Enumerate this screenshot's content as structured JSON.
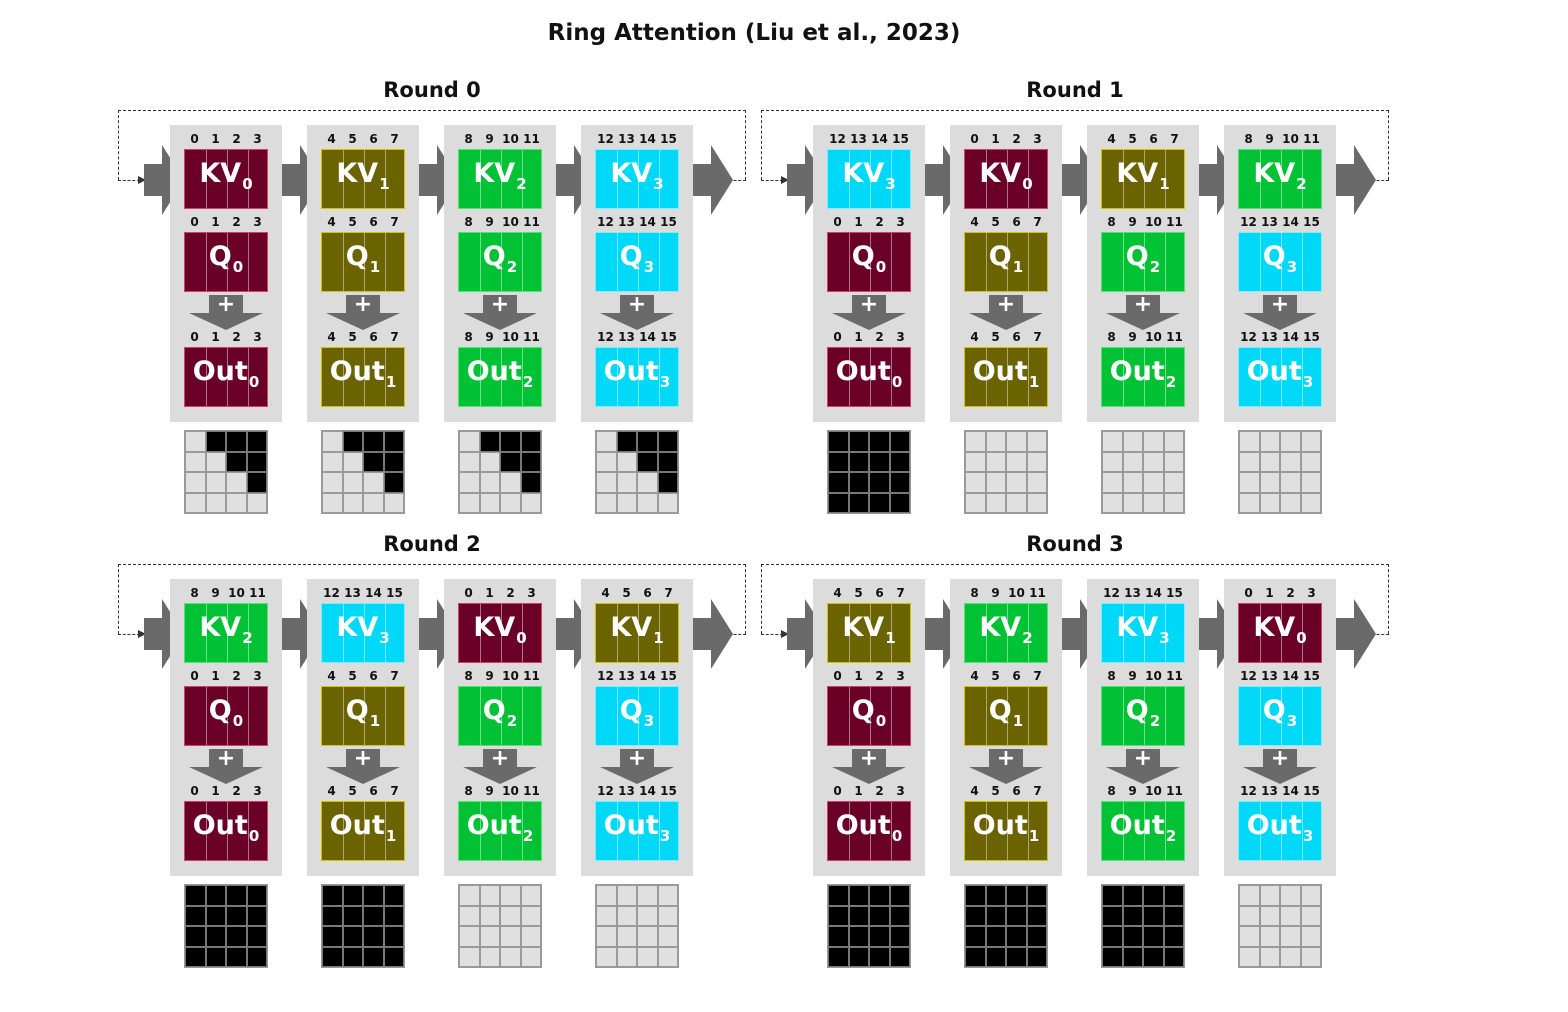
{
  "title": "Ring Attention (Liu et al., 2023)",
  "colors": {
    "block0": "#6b0026",
    "block1": "#6b6200",
    "block2": "#00c234",
    "block3": "#00d8f8",
    "panel": "#dcdcdc",
    "arrow": "#6a6a6a",
    "mask_on": "#000000",
    "mask_off": "#e0e0e0"
  },
  "index_labels": [
    [
      "0",
      "1",
      "2",
      "3"
    ],
    [
      "4",
      "5",
      "6",
      "7"
    ],
    [
      "8",
      "9",
      "10",
      "11"
    ],
    [
      "12",
      "13",
      "14",
      "15"
    ]
  ],
  "labels": {
    "kv": "KV",
    "q": "Q",
    "out": "Out",
    "plus": "+"
  },
  "rounds": [
    {
      "title": "Round 0",
      "kv_blocks": [
        0,
        1,
        2,
        3
      ],
      "mask": "diagonal"
    },
    {
      "title": "Round 1",
      "kv_blocks": [
        3,
        0,
        1,
        2
      ],
      "mask_full": [
        true,
        false,
        false,
        false
      ]
    },
    {
      "title": "Round 2",
      "kv_blocks": [
        2,
        3,
        0,
        1
      ],
      "mask_full": [
        true,
        true,
        false,
        false
      ]
    },
    {
      "title": "Round 3",
      "kv_blocks": [
        1,
        2,
        3,
        0
      ],
      "mask_full": [
        true,
        true,
        true,
        false
      ]
    }
  ]
}
